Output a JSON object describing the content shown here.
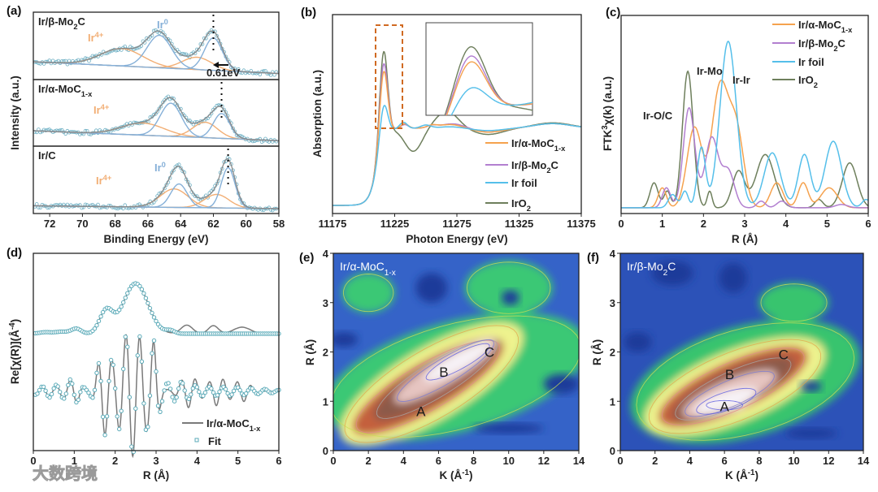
{
  "figure": {
    "panel_labels": [
      "(a)",
      "(b)",
      "(c)",
      "(d)",
      "(e)",
      "(f)"
    ],
    "watermark": "大数跨境"
  },
  "chart_data": [
    {
      "id": "a",
      "type": "line",
      "xlabel": "Binding Energy (eV)",
      "ylabel": "Intensity (a.u.)",
      "xlim": [
        73,
        58
      ],
      "xticks": [
        "72",
        "70",
        "68",
        "66",
        "64",
        "62",
        "60",
        "58"
      ],
      "peak_format": "[center_eV, height, sigma_eV]",
      "component_labels": {
        "ir0": [
          {
            "t": "Ir"
          },
          {
            "t": "0",
            "sup": true
          }
        ],
        "ir4": [
          {
            "t": "Ir"
          },
          {
            "t": "4+",
            "sup": true
          }
        ]
      },
      "shift_annotation": "0.61eV",
      "subplots": [
        {
          "sample": [
            {
              "t": "Ir/β-Mo"
            },
            {
              "t": "2",
              "sub": true
            },
            {
              "t": "C"
            }
          ],
          "show_ir0_label": true,
          "background": [
            0.26,
            0.05
          ],
          "ir0_peaks": [
            [
              65.3,
              0.58,
              0.75
            ],
            [
              62.0,
              0.58,
              0.55
            ]
          ],
          "ir4_peaks": [
            [
              67.6,
              0.31,
              1.3
            ],
            [
              63.0,
              0.22,
              0.9
            ]
          ],
          "marker_eV": 62.0
        },
        {
          "sample": [
            {
              "t": "Ir/α-MoC"
            },
            {
              "t": "1-x",
              "sub": true
            }
          ],
          "show_ir0_label": false,
          "background": [
            0.22,
            0.04
          ],
          "ir0_peaks": [
            [
              64.6,
              0.6,
              0.65
            ],
            [
              61.5,
              0.45,
              0.5
            ]
          ],
          "ir4_peaks": [
            [
              66.3,
              0.22,
              1.3
            ],
            [
              62.5,
              0.28,
              0.75
            ]
          ],
          "marker_eV": 61.5
        },
        {
          "sample": [
            {
              "t": "Ir/C"
            }
          ],
          "show_ir0_label": true,
          "background": [
            0.08,
            0.03
          ],
          "ir0_peaks": [
            [
              64.1,
              0.42,
              0.5
            ],
            [
              61.1,
              0.72,
              0.42
            ]
          ],
          "ir4_peaks": [
            [
              64.4,
              0.33,
              0.85
            ],
            [
              61.8,
              0.24,
              0.75
            ]
          ],
          "marker_eV": 61.1
        }
      ]
    },
    {
      "id": "b",
      "type": "line",
      "xlabel": "Photon Energy (eV)",
      "ylabel": "Absorption (a.u.)",
      "xlim": [
        11175,
        11375
      ],
      "xticks": [
        "11175",
        "11225",
        "11275",
        "11325",
        "11375"
      ],
      "edge_eV": 11211,
      "white_line_eV": 11216,
      "inset_xlim": [
        11207,
        11229
      ],
      "series": [
        {
          "name": [
            {
              "t": "Ir/α-MoC"
            },
            {
              "t": "1-x",
              "sub": true
            }
          ],
          "color": "#f5a24e",
          "white_line_height": 0.92,
          "features": [
            [
              11233,
              0.06,
              3
            ],
            [
              11255,
              0.03,
              4
            ],
            [
              11270,
              0.05,
              10
            ],
            [
              11300,
              -0.05,
              12
            ],
            [
              11352,
              0.06,
              15
            ]
          ]
        },
        {
          "name": [
            {
              "t": "Ir/β-Mo"
            },
            {
              "t": "2",
              "sub": true
            },
            {
              "t": "C"
            }
          ],
          "color": "#b27fd0",
          "white_line_height": 1.02,
          "features": [
            [
              11233,
              0.05,
              3
            ],
            [
              11255,
              0.03,
              4
            ],
            [
              11272,
              0.06,
              10
            ],
            [
              11300,
              -0.05,
              12
            ],
            [
              11352,
              0.06,
              15
            ]
          ]
        },
        {
          "name": [
            {
              "t": "Ir foil"
            }
          ],
          "color": "#55bfea",
          "white_line_height": 0.47,
          "features": [
            [
              11232,
              0.08,
              3
            ],
            [
              11250,
              0.04,
              4
            ],
            [
              11270,
              0.02,
              10
            ],
            [
              11300,
              -0.03,
              12
            ],
            [
              11352,
              0.06,
              15
            ]
          ]
        },
        {
          "name": [
            {
              "t": "IrO"
            },
            {
              "t": "2",
              "sub": true
            }
          ],
          "color": "#6e7f5c",
          "white_line_height": 1.18,
          "features": [
            [
              11240,
              -0.3,
              7
            ],
            [
              11267,
              0.22,
              9
            ],
            [
              11300,
              -0.08,
              12
            ],
            [
              11352,
              0.07,
              15
            ]
          ]
        }
      ]
    },
    {
      "id": "c",
      "type": "line",
      "xlabel": "R (Å)",
      "ylabel": [
        {
          "t": "FTK"
        },
        {
          "t": "3",
          "sup": true
        },
        {
          "t": "χ(k) (a.u.)"
        }
      ],
      "xlim": [
        0,
        6
      ],
      "xticks": [
        "0",
        "1",
        "2",
        "3",
        "4",
        "5",
        "6"
      ],
      "peak_format": "[R, amplitude, sigma]",
      "annotations": [
        "Ir-Mo",
        "Ir-Ir",
        "Ir-O/C"
      ],
      "series": [
        {
          "name": [
            {
              "t": "Ir/α-MoC"
            },
            {
              "t": "1-x",
              "sub": true
            }
          ],
          "color": "#f5a24e",
          "peaks": [
            [
              1.0,
              0.12,
              0.1
            ],
            [
              1.78,
              0.48,
              0.18
            ],
            [
              2.4,
              0.72,
              0.2
            ],
            [
              2.8,
              0.45,
              0.18
            ],
            [
              3.78,
              0.15,
              0.15
            ],
            [
              4.42,
              0.15,
              0.12
            ],
            [
              5.05,
              0.12,
              0.2
            ]
          ]
        },
        {
          "name": [
            {
              "t": "Ir/β-Mo"
            },
            {
              "t": "2",
              "sub": true
            },
            {
              "t": "C"
            }
          ],
          "color": "#b27fd0",
          "peaks": [
            [
              1.1,
              0.12,
              0.1
            ],
            [
              1.65,
              0.6,
              0.14
            ],
            [
              2.2,
              0.42,
              0.16
            ],
            [
              2.6,
              0.22,
              0.15
            ],
            [
              3.4,
              0.04,
              0.1
            ],
            [
              3.9,
              0.04,
              0.12
            ],
            [
              5.35,
              0.02,
              0.15
            ]
          ]
        },
        {
          "name": [
            {
              "t": "Ir foil"
            }
          ],
          "color": "#55bfea",
          "peaks": [
            [
              1.25,
              0.08,
              0.1
            ],
            [
              1.55,
              0.1,
              0.08
            ],
            [
              1.95,
              0.36,
              0.1
            ],
            [
              2.6,
              1.0,
              0.2
            ],
            [
              3.67,
              0.33,
              0.2
            ],
            [
              4.45,
              0.32,
              0.15
            ],
            [
              5.15,
              0.4,
              0.2
            ],
            [
              5.95,
              0.05,
              0.1
            ]
          ]
        },
        {
          "name": [
            {
              "t": "IrO"
            },
            {
              "t": "2",
              "sub": true
            }
          ],
          "color": "#6e7f5c",
          "peaks": [
            [
              0.8,
              0.15,
              0.1
            ],
            [
              1.12,
              0.1,
              0.08
            ],
            [
              1.62,
              0.82,
              0.13
            ],
            [
              2.15,
              0.1,
              0.06
            ],
            [
              2.85,
              0.22,
              0.15
            ],
            [
              3.5,
              0.32,
              0.22
            ],
            [
              4.8,
              0.05,
              0.1
            ],
            [
              5.55,
              0.27,
              0.18
            ]
          ]
        }
      ]
    },
    {
      "id": "d",
      "type": "line",
      "xlabel": "R (Å)",
      "ylabel": [
        {
          "t": "Re[χ(R)](Å"
        },
        {
          "t": "-4",
          "sup": true
        },
        {
          "t": ")"
        }
      ],
      "xlim": [
        0,
        6
      ],
      "xticks": [
        "0",
        "1",
        "2",
        "3",
        "4",
        "5",
        "6"
      ],
      "series": [
        {
          "name": [
            {
              "t": "Ir/α-MoC"
            },
            {
              "t": "1-x",
              "sub": true
            }
          ],
          "color": "#777777",
          "magnitude_peaks": [
            [
              0.3,
              0.03,
              0.15
            ],
            [
              0.7,
              0.04,
              0.15
            ],
            [
              1.05,
              0.1,
              0.12
            ],
            [
              1.78,
              0.45,
              0.16
            ],
            [
              2.5,
              1.0,
              0.3
            ],
            [
              3.75,
              0.17,
              0.14
            ],
            [
              4.4,
              0.16,
              0.12
            ],
            [
              5.1,
              0.13,
              0.2
            ]
          ],
          "real_envelope_peaks": [
            [
              0.5,
              0.1,
              0.4
            ],
            [
              1.0,
              0.15,
              0.15
            ],
            [
              1.72,
              0.6,
              0.15
            ],
            [
              2.42,
              1.0,
              0.3
            ],
            [
              2.95,
              0.55,
              0.1
            ],
            [
              3.8,
              0.25,
              0.2
            ],
            [
              4.5,
              0.22,
              0.2
            ],
            [
              5.1,
              0.16,
              0.2
            ]
          ]
        },
        {
          "name": [
            {
              "t": "Fit"
            }
          ],
          "color": "#5aaab8",
          "magnitude_peaks": [
            [
              0.3,
              0.03,
              0.15
            ],
            [
              0.7,
              0.04,
              0.15
            ],
            [
              1.05,
              0.1,
              0.12
            ],
            [
              1.78,
              0.45,
              0.16
            ],
            [
              2.5,
              1.0,
              0.3
            ],
            [
              3.35,
              0.06,
              0.1
            ]
          ],
          "real_envelope_peaks": [
            [
              0.5,
              0.1,
              0.4
            ],
            [
              1.0,
              0.15,
              0.15
            ],
            [
              1.72,
              0.6,
              0.15
            ],
            [
              2.42,
              1.0,
              0.3
            ],
            [
              2.95,
              0.55,
              0.1
            ],
            [
              3.5,
              0.12,
              0.3
            ],
            [
              4.6,
              0.07,
              0.9
            ]
          ]
        }
      ]
    },
    {
      "id": "e",
      "type": "heatmap",
      "title": [
        {
          "t": "Ir/α-MoC"
        },
        {
          "t": "1-x",
          "sub": true
        }
      ],
      "xlabel": [
        {
          "t": "K (Å"
        },
        {
          "t": "-1",
          "sup": true
        },
        {
          "t": ")"
        }
      ],
      "ylabel": "R (Å)",
      "xlim": [
        0,
        14
      ],
      "ylim": [
        0,
        4
      ],
      "xticks": [
        "0",
        "2",
        "4",
        "6",
        "8",
        "10",
        "12",
        "14"
      ],
      "yticks": [
        "0",
        "1",
        "2",
        "3",
        "4"
      ],
      "points": [
        {
          "label": "A",
          "k": 5.0,
          "r": 0.8
        },
        {
          "label": "B",
          "k": 6.3,
          "r": 1.6
        },
        {
          "label": "C",
          "k": 8.9,
          "r": 2.0
        }
      ]
    },
    {
      "id": "f",
      "type": "heatmap",
      "title": [
        {
          "t": "Ir/β-Mo"
        },
        {
          "t": "2",
          "sub": true
        },
        {
          "t": "C"
        }
      ],
      "xlabel": [
        {
          "t": "K (Å"
        },
        {
          "t": "-1",
          "sup": true
        },
        {
          "t": ")"
        }
      ],
      "ylabel": "R (Å)",
      "xlim": [
        0,
        14
      ],
      "ylim": [
        0,
        4
      ],
      "xticks": [
        "0",
        "2",
        "4",
        "6",
        "8",
        "10",
        "12",
        "14"
      ],
      "yticks": [
        "0",
        "1",
        "2",
        "3",
        "4"
      ],
      "points": [
        {
          "label": "A",
          "k": 6.0,
          "r": 0.9
        },
        {
          "label": "B",
          "k": 6.3,
          "r": 1.55
        },
        {
          "label": "C",
          "k": 9.4,
          "r": 1.95
        }
      ]
    }
  ]
}
